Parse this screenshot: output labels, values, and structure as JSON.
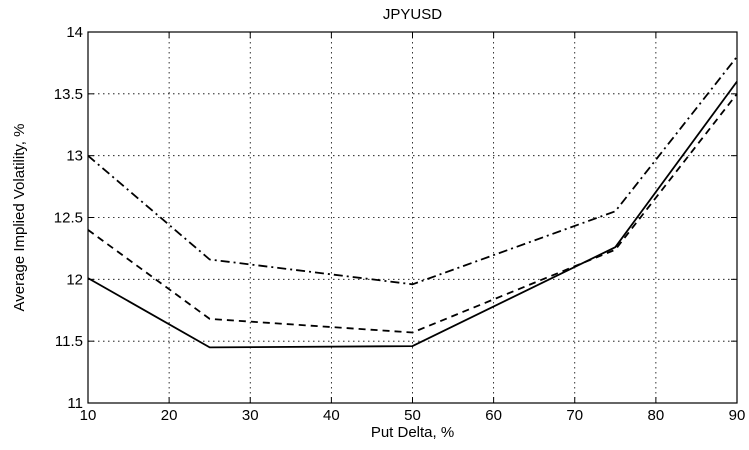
{
  "chart_data": {
    "type": "line",
    "title": "JPYUSD",
    "xlabel": "Put Delta, %",
    "ylabel": "Average Implied Volatility, %",
    "xlim": [
      10,
      90
    ],
    "ylim": [
      11,
      14
    ],
    "x_ticks": [
      10,
      20,
      30,
      40,
      50,
      60,
      70,
      80,
      90
    ],
    "y_ticks": [
      11,
      11.5,
      12,
      12.5,
      13,
      13.5,
      14
    ],
    "grid": true,
    "legend": "none",
    "x": [
      10,
      25,
      50,
      75,
      90
    ],
    "series": [
      {
        "style": "solid",
        "color": "#000000",
        "values": [
          12.01,
          11.45,
          11.46,
          12.26,
          13.6
        ]
      },
      {
        "style": "dashed",
        "color": "#000000",
        "values": [
          12.4,
          11.68,
          11.57,
          12.24,
          13.5
        ]
      },
      {
        "style": "dashdot",
        "color": "#000000",
        "values": [
          13.0,
          12.16,
          11.96,
          12.55,
          13.8
        ]
      }
    ]
  }
}
